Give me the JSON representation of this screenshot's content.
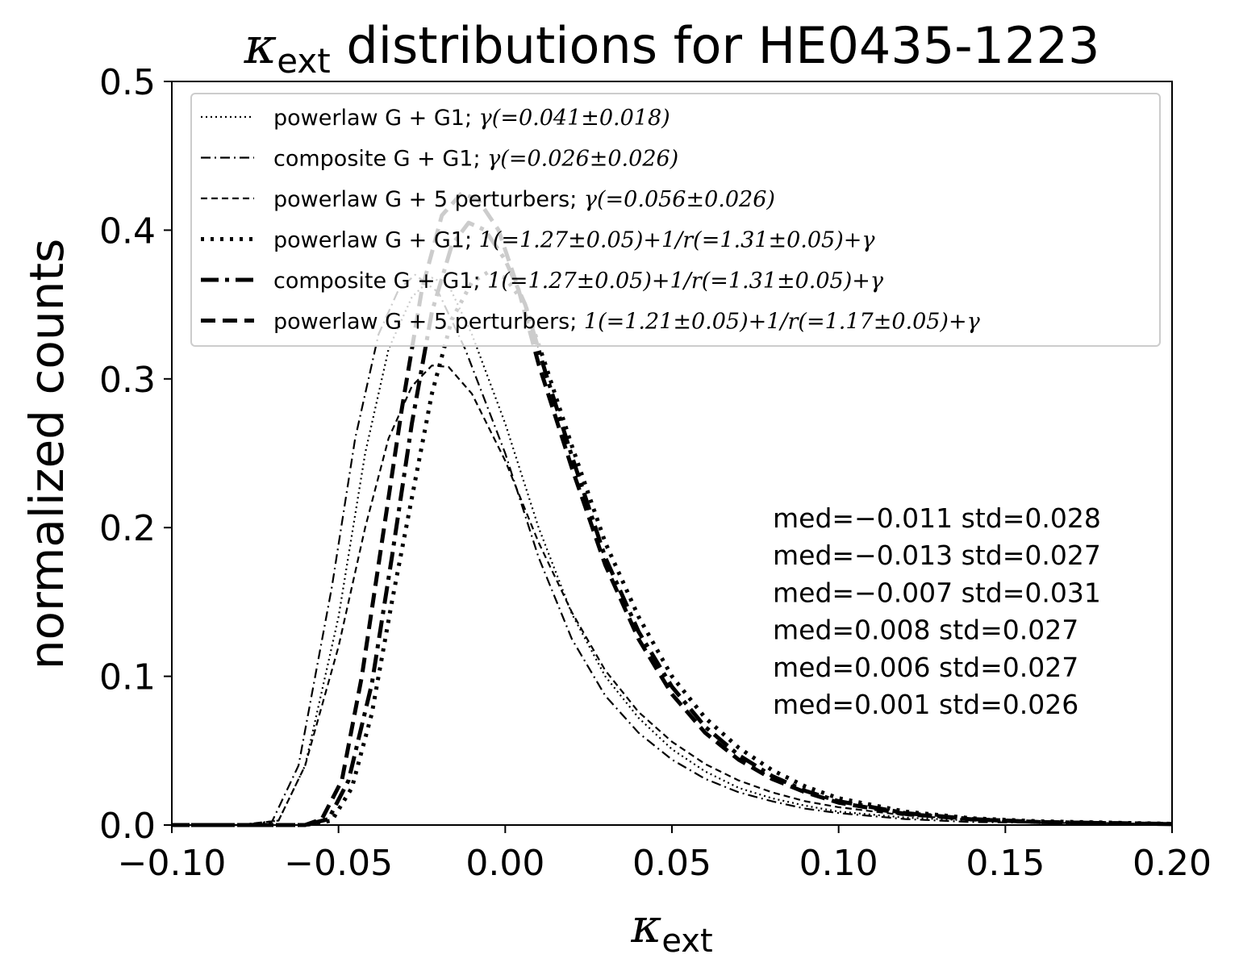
{
  "chart_data": {
    "type": "line",
    "title": {
      "symbol": "κ",
      "subscript": "ext",
      "text": "distributions for HE0435-1223"
    },
    "xlabel": {
      "symbol": "κ",
      "subscript": "ext"
    },
    "ylabel": "normalized counts",
    "xlim": [
      -0.1,
      0.2
    ],
    "ylim": [
      0.0,
      0.5
    ],
    "xticks": [
      -0.1,
      -0.05,
      0.0,
      0.05,
      0.1,
      0.15,
      0.2
    ],
    "xtick_labels": [
      "−0.10",
      "−0.05",
      "0.00",
      "0.05",
      "0.10",
      "0.15",
      "0.20"
    ],
    "yticks": [
      0.0,
      0.1,
      0.2,
      0.3,
      0.4,
      0.5
    ],
    "ytick_labels": [
      "0.0",
      "0.1",
      "0.2",
      "0.3",
      "0.4",
      "0.5"
    ],
    "grid": false,
    "legend_position": "top",
    "series": [
      {
        "name": "powerlaw G + G1; γ(=0.041±0.018)",
        "style": "dotted-thin",
        "color": "#000000",
        "points": [
          [
            -0.1,
            0
          ],
          [
            -0.08,
            0
          ],
          [
            -0.068,
            0.003
          ],
          [
            -0.06,
            0.04
          ],
          [
            -0.05,
            0.14
          ],
          [
            -0.042,
            0.25
          ],
          [
            -0.035,
            0.32
          ],
          [
            -0.028,
            0.355
          ],
          [
            -0.022,
            0.368
          ],
          [
            -0.017,
            0.363
          ],
          [
            -0.01,
            0.33
          ],
          [
            0.0,
            0.27
          ],
          [
            0.01,
            0.2
          ],
          [
            0.02,
            0.142
          ],
          [
            0.03,
            0.1
          ],
          [
            0.04,
            0.072
          ],
          [
            0.05,
            0.051
          ],
          [
            0.06,
            0.036
          ],
          [
            0.07,
            0.025
          ],
          [
            0.08,
            0.018
          ],
          [
            0.09,
            0.013
          ],
          [
            0.1,
            0.009
          ],
          [
            0.12,
            0.005
          ],
          [
            0.14,
            0.003
          ],
          [
            0.16,
            0.002
          ],
          [
            0.2,
            0.0005
          ]
        ]
      },
      {
        "name": "composite G + G1; γ(=0.026±0.026)",
        "style": "dashdot-thin",
        "color": "#000000",
        "points": [
          [
            -0.1,
            0
          ],
          [
            -0.08,
            0
          ],
          [
            -0.07,
            0.002
          ],
          [
            -0.062,
            0.04
          ],
          [
            -0.052,
            0.16
          ],
          [
            -0.045,
            0.26
          ],
          [
            -0.038,
            0.33
          ],
          [
            -0.032,
            0.36
          ],
          [
            -0.027,
            0.37
          ],
          [
            -0.02,
            0.358
          ],
          [
            -0.012,
            0.32
          ],
          [
            0.0,
            0.25
          ],
          [
            0.01,
            0.18
          ],
          [
            0.02,
            0.125
          ],
          [
            0.03,
            0.087
          ],
          [
            0.04,
            0.062
          ],
          [
            0.05,
            0.044
          ],
          [
            0.06,
            0.031
          ],
          [
            0.07,
            0.022
          ],
          [
            0.08,
            0.016
          ],
          [
            0.09,
            0.011
          ],
          [
            0.1,
            0.008
          ],
          [
            0.12,
            0.004
          ],
          [
            0.14,
            0.002
          ],
          [
            0.16,
            0.0015
          ],
          [
            0.2,
            0.0005
          ]
        ]
      },
      {
        "name": "powerlaw G + 5 perturbers; γ(=0.056±0.026)",
        "style": "dashed-thin",
        "color": "#000000",
        "points": [
          [
            -0.1,
            0
          ],
          [
            -0.08,
            0
          ],
          [
            -0.068,
            0.003
          ],
          [
            -0.06,
            0.04
          ],
          [
            -0.05,
            0.12
          ],
          [
            -0.042,
            0.2
          ],
          [
            -0.035,
            0.26
          ],
          [
            -0.028,
            0.295
          ],
          [
            -0.022,
            0.309
          ],
          [
            -0.017,
            0.308
          ],
          [
            -0.01,
            0.29
          ],
          [
            0.0,
            0.245
          ],
          [
            0.01,
            0.19
          ],
          [
            0.02,
            0.143
          ],
          [
            0.03,
            0.104
          ],
          [
            0.04,
            0.076
          ],
          [
            0.05,
            0.056
          ],
          [
            0.06,
            0.041
          ],
          [
            0.07,
            0.03
          ],
          [
            0.08,
            0.022
          ],
          [
            0.09,
            0.016
          ],
          [
            0.1,
            0.012
          ],
          [
            0.12,
            0.0065
          ],
          [
            0.14,
            0.0035
          ],
          [
            0.16,
            0.002
          ],
          [
            0.2,
            0.0006
          ]
        ]
      },
      {
        "name": "powerlaw G + G1; 1(=1.27±0.05)+1/r(=1.31±0.05)+γ",
        "style": "dotted-thick",
        "color": "#000000",
        "points": [
          [
            -0.1,
            0
          ],
          [
            -0.06,
            0
          ],
          [
            -0.052,
            0.003
          ],
          [
            -0.046,
            0.025
          ],
          [
            -0.04,
            0.075
          ],
          [
            -0.034,
            0.15
          ],
          [
            -0.028,
            0.22
          ],
          [
            -0.022,
            0.29
          ],
          [
            -0.016,
            0.34
          ],
          [
            -0.01,
            0.365
          ],
          [
            -0.005,
            0.372
          ],
          [
            0.0,
            0.368
          ],
          [
            0.006,
            0.35
          ],
          [
            0.012,
            0.31
          ],
          [
            0.02,
            0.255
          ],
          [
            0.03,
            0.19
          ],
          [
            0.04,
            0.14
          ],
          [
            0.05,
            0.1
          ],
          [
            0.06,
            0.072
          ],
          [
            0.07,
            0.052
          ],
          [
            0.08,
            0.037
          ],
          [
            0.09,
            0.026
          ],
          [
            0.1,
            0.018
          ],
          [
            0.12,
            0.009
          ],
          [
            0.14,
            0.0045
          ],
          [
            0.16,
            0.0025
          ],
          [
            0.2,
            0.0008
          ]
        ]
      },
      {
        "name": "composite G + G1; 1(=1.27±0.05)+1/r(=1.31±0.05)+γ",
        "style": "dashdot-thick",
        "color": "#000000",
        "points": [
          [
            -0.1,
            0
          ],
          [
            -0.06,
            0
          ],
          [
            -0.053,
            0.004
          ],
          [
            -0.047,
            0.03
          ],
          [
            -0.04,
            0.095
          ],
          [
            -0.034,
            0.18
          ],
          [
            -0.028,
            0.27
          ],
          [
            -0.022,
            0.345
          ],
          [
            -0.016,
            0.39
          ],
          [
            -0.011,
            0.405
          ],
          [
            -0.006,
            0.4
          ],
          [
            0.0,
            0.38
          ],
          [
            0.006,
            0.35
          ],
          [
            0.012,
            0.305
          ],
          [
            0.02,
            0.248
          ],
          [
            0.03,
            0.18
          ],
          [
            0.04,
            0.13
          ],
          [
            0.05,
            0.093
          ],
          [
            0.06,
            0.066
          ],
          [
            0.07,
            0.047
          ],
          [
            0.08,
            0.033
          ],
          [
            0.09,
            0.023
          ],
          [
            0.1,
            0.016
          ],
          [
            0.12,
            0.008
          ],
          [
            0.14,
            0.004
          ],
          [
            0.16,
            0.002
          ],
          [
            0.2,
            0.0007
          ]
        ]
      },
      {
        "name": "powerlaw G + 5 perturbers; 1(=1.21±0.05)+1/r(=1.17±0.05)+γ",
        "style": "dashed-thick",
        "color": "#000000",
        "points": [
          [
            -0.1,
            0
          ],
          [
            -0.06,
            0
          ],
          [
            -0.055,
            0.004
          ],
          [
            -0.049,
            0.03
          ],
          [
            -0.043,
            0.1
          ],
          [
            -0.037,
            0.19
          ],
          [
            -0.031,
            0.28
          ],
          [
            -0.025,
            0.36
          ],
          [
            -0.019,
            0.41
          ],
          [
            -0.013,
            0.425
          ],
          [
            -0.008,
            0.42
          ],
          [
            -0.002,
            0.4
          ],
          [
            0.004,
            0.36
          ],
          [
            0.01,
            0.31
          ],
          [
            0.02,
            0.24
          ],
          [
            0.03,
            0.175
          ],
          [
            0.04,
            0.125
          ],
          [
            0.05,
            0.088
          ],
          [
            0.06,
            0.062
          ],
          [
            0.07,
            0.044
          ],
          [
            0.08,
            0.031
          ],
          [
            0.09,
            0.022
          ],
          [
            0.1,
            0.015
          ],
          [
            0.12,
            0.0075
          ],
          [
            0.14,
            0.0038
          ],
          [
            0.16,
            0.002
          ],
          [
            0.2,
            0.0006
          ]
        ]
      }
    ],
    "legend": [
      {
        "prefix": "powerlaw G + G1; ",
        "math": "γ(=0.041±0.018)"
      },
      {
        "prefix": "composite G + G1; ",
        "math": "γ(=0.026±0.026)"
      },
      {
        "prefix": "powerlaw G + 5 perturbers; ",
        "math": "γ(=0.056±0.026)"
      },
      {
        "prefix": "powerlaw G + G1; ",
        "math": "1(=1.27±0.05)+1/r(=1.31±0.05)+γ"
      },
      {
        "prefix": "composite G + G1; ",
        "math": "1(=1.27±0.05)+1/r(=1.31±0.05)+γ"
      },
      {
        "prefix": "powerlaw G + 5 perturbers; ",
        "math": "1(=1.21±0.05)+1/r(=1.17±0.05)+γ"
      }
    ],
    "annotations": [
      "med=−0.011 std=0.028",
      "med=−0.013 std=0.027",
      "med=−0.007 std=0.031",
      "med=0.008 std=0.027",
      "med=0.006 std=0.027",
      "med=0.001 std=0.026"
    ]
  }
}
